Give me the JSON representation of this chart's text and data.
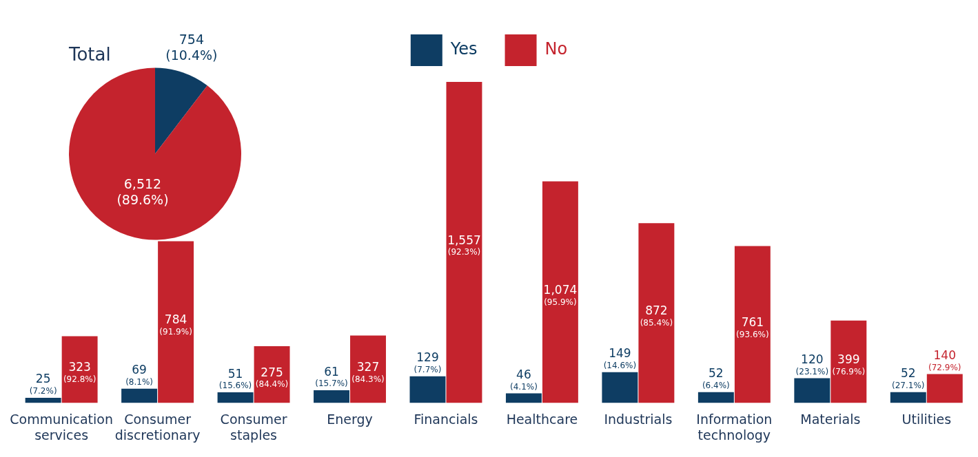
{
  "chart_data": [
    {
      "type": "bar",
      "categories": [
        "Communication services",
        "Consumer discretionary",
        "Consumer staples",
        "Energy",
        "Financials",
        "Healthcare",
        "Industrials",
        "Information technology",
        "Materials",
        "Utilities"
      ],
      "series": [
        {
          "name": "Yes",
          "color": "#0e3d63",
          "values": [
            25,
            69,
            51,
            61,
            129,
            46,
            149,
            52,
            120,
            52
          ],
          "value_labels": [
            "25 (7.2%)",
            "69 (8.1%)",
            "51 (15.6%)",
            "61 (15.7%)",
            "129 (7.7%)",
            "46 (4.1%)",
            "149 (14.6%)",
            "52 (6.4%)",
            "120 (23.1%)",
            "52 (27.1%)"
          ]
        },
        {
          "name": "No",
          "color": "#c4232d",
          "values": [
            323,
            784,
            275,
            327,
            1557,
            1074,
            872,
            761,
            399,
            140
          ],
          "value_labels": [
            "323 (92.8%)",
            "784 (91.9%)",
            "275 (84.4%)",
            "327 (84.3%)",
            "1,557 (92.3%)",
            "1,074 (95.9%)",
            "872 (85.4%)",
            "761 (93.6%)",
            "399 (76.9%)",
            "140 (72.9%)"
          ]
        }
      ],
      "legend": "top",
      "grid": false
    },
    {
      "type": "pie",
      "title": "Total",
      "categories": [
        null,
        null
      ],
      "values": [
        754,
        6512
      ],
      "colors": [
        "#0e3d63",
        "#c4232d"
      ],
      "value_labels": [
        "754 (10.4%)",
        "6,512 (89.6%)"
      ],
      "legend": false
    }
  ]
}
